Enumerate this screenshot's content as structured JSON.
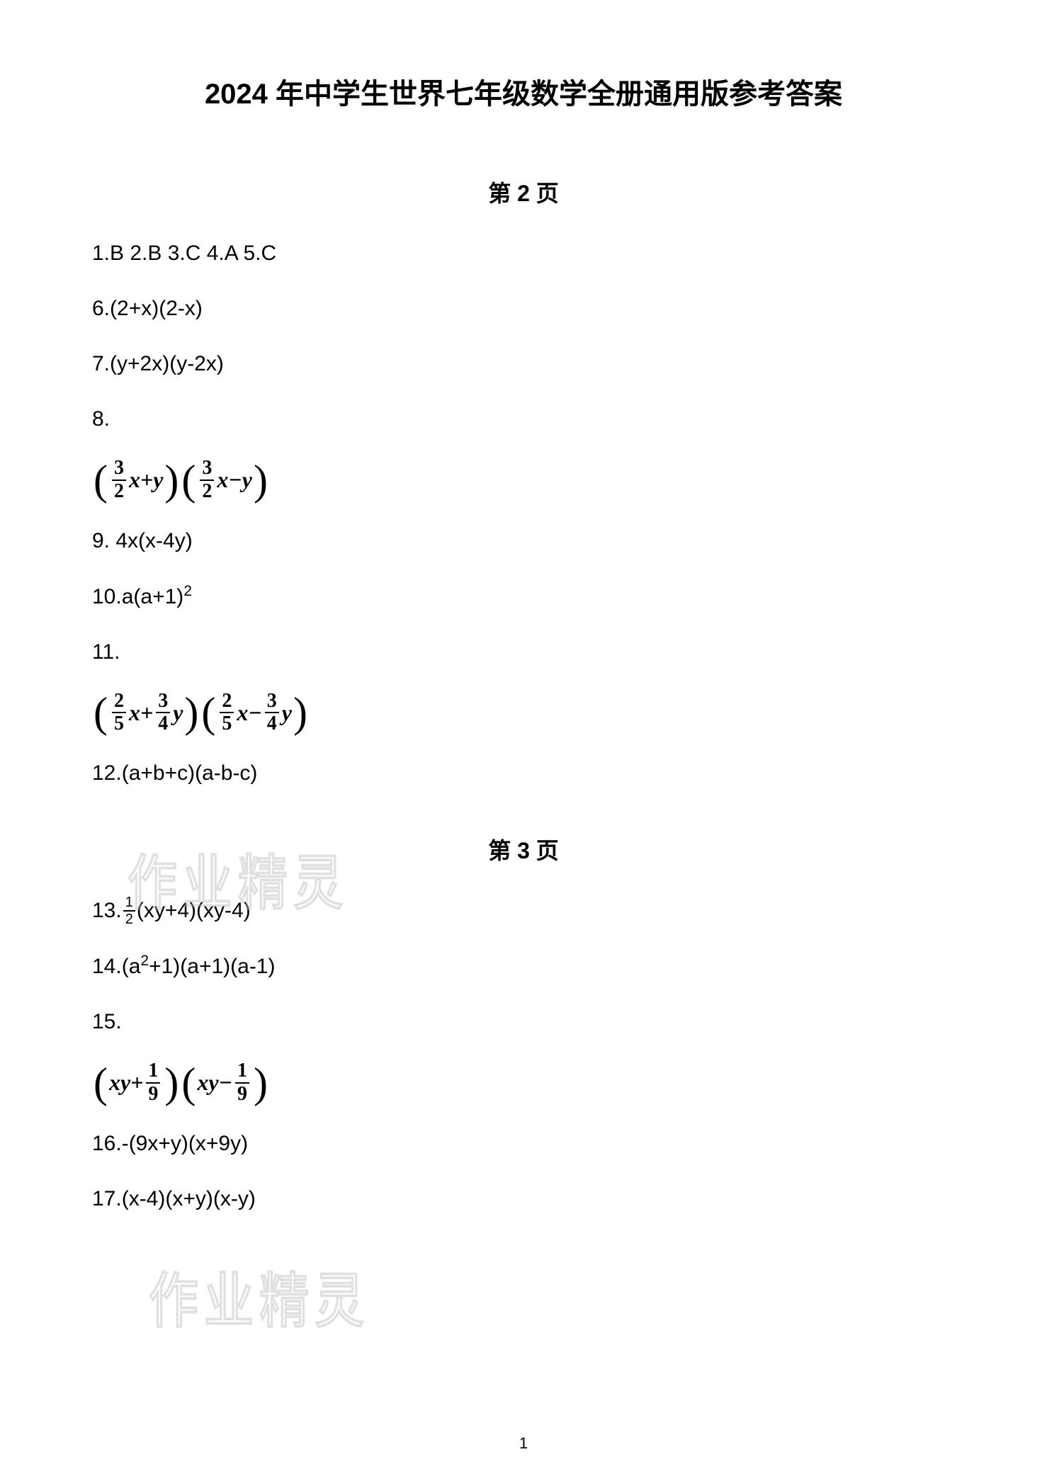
{
  "title": "2024 年中学生世界七年级数学全册通用版参考答案",
  "sections": [
    {
      "header": "第 2 页",
      "answers": {
        "line1": "1.B 2.B 3.C 4.A 5.C",
        "line6": "6.(2+x)(2-x)",
        "line7": "7.(y+2x)(y-2x)",
        "line8_label": "8.",
        "line9": "9. 4x(x-4y)",
        "line10_pre": "10.a(a+1)",
        "line10_sup": "2",
        "line11_label": "11.",
        "line12": "12.(a+b+c)(a-b-c)"
      },
      "formula8": {
        "frac1_num": "3",
        "frac1_den": "2",
        "term1": "x+y",
        "frac2_num": "3",
        "frac2_den": "2",
        "term2": "x−y"
      },
      "formula11": {
        "frac1_num": "2",
        "frac1_den": "5",
        "mid1": "x+",
        "frac2_num": "3",
        "frac2_den": "4",
        "end1": "y",
        "frac3_num": "2",
        "frac3_den": "5",
        "mid2": "x−",
        "frac4_num": "3",
        "frac4_den": "4",
        "end2": "y"
      }
    },
    {
      "header": "第 3 页",
      "answers": {
        "line13_pre": "13.",
        "line13_frac_num": "1",
        "line13_frac_den": "2",
        "line13_post": "(xy+4)(xy-4)",
        "line14_a": "14.(a",
        "line14_sup": "2",
        "line14_b": "+1)(a+1)(a-1)",
        "line15_label": "15.",
        "line16": "16.-(9x+y)(x+9y)",
        "line17": "17.(x-4)(x+y)(x-y)"
      },
      "formula15": {
        "pre1": "xy+",
        "frac1_num": "1",
        "frac1_den": "9",
        "pre2": "xy−",
        "frac2_num": "1",
        "frac2_den": "9"
      }
    }
  ],
  "watermark": "作业精灵",
  "page_number": "1"
}
